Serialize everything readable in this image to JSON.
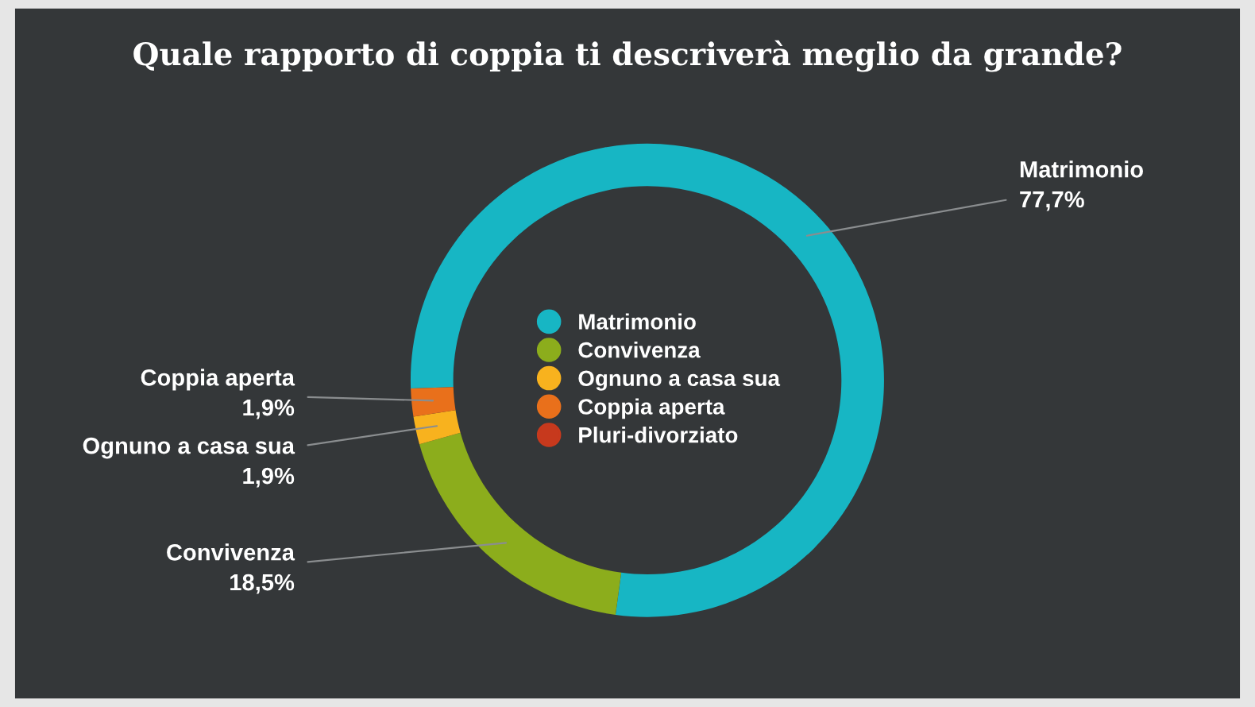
{
  "chart_data": {
    "type": "donut",
    "title": "Quale rapporto di coppia ti descriverà meglio da grande?",
    "categories": [
      "Matrimonio",
      "Convivenza",
      "Ognuno a casa sua",
      "Coppia aperta",
      "Pluri-divorziato"
    ],
    "values": [
      77.7,
      18.5,
      1.9,
      1.9,
      0
    ],
    "value_labels": [
      "77,7%",
      "18,5%",
      "1,9%",
      "1,9%",
      null
    ],
    "colors": [
      "#17b6c4",
      "#8cad1c",
      "#f8b21e",
      "#e9701b",
      "#c7391d"
    ],
    "legend": "center"
  }
}
